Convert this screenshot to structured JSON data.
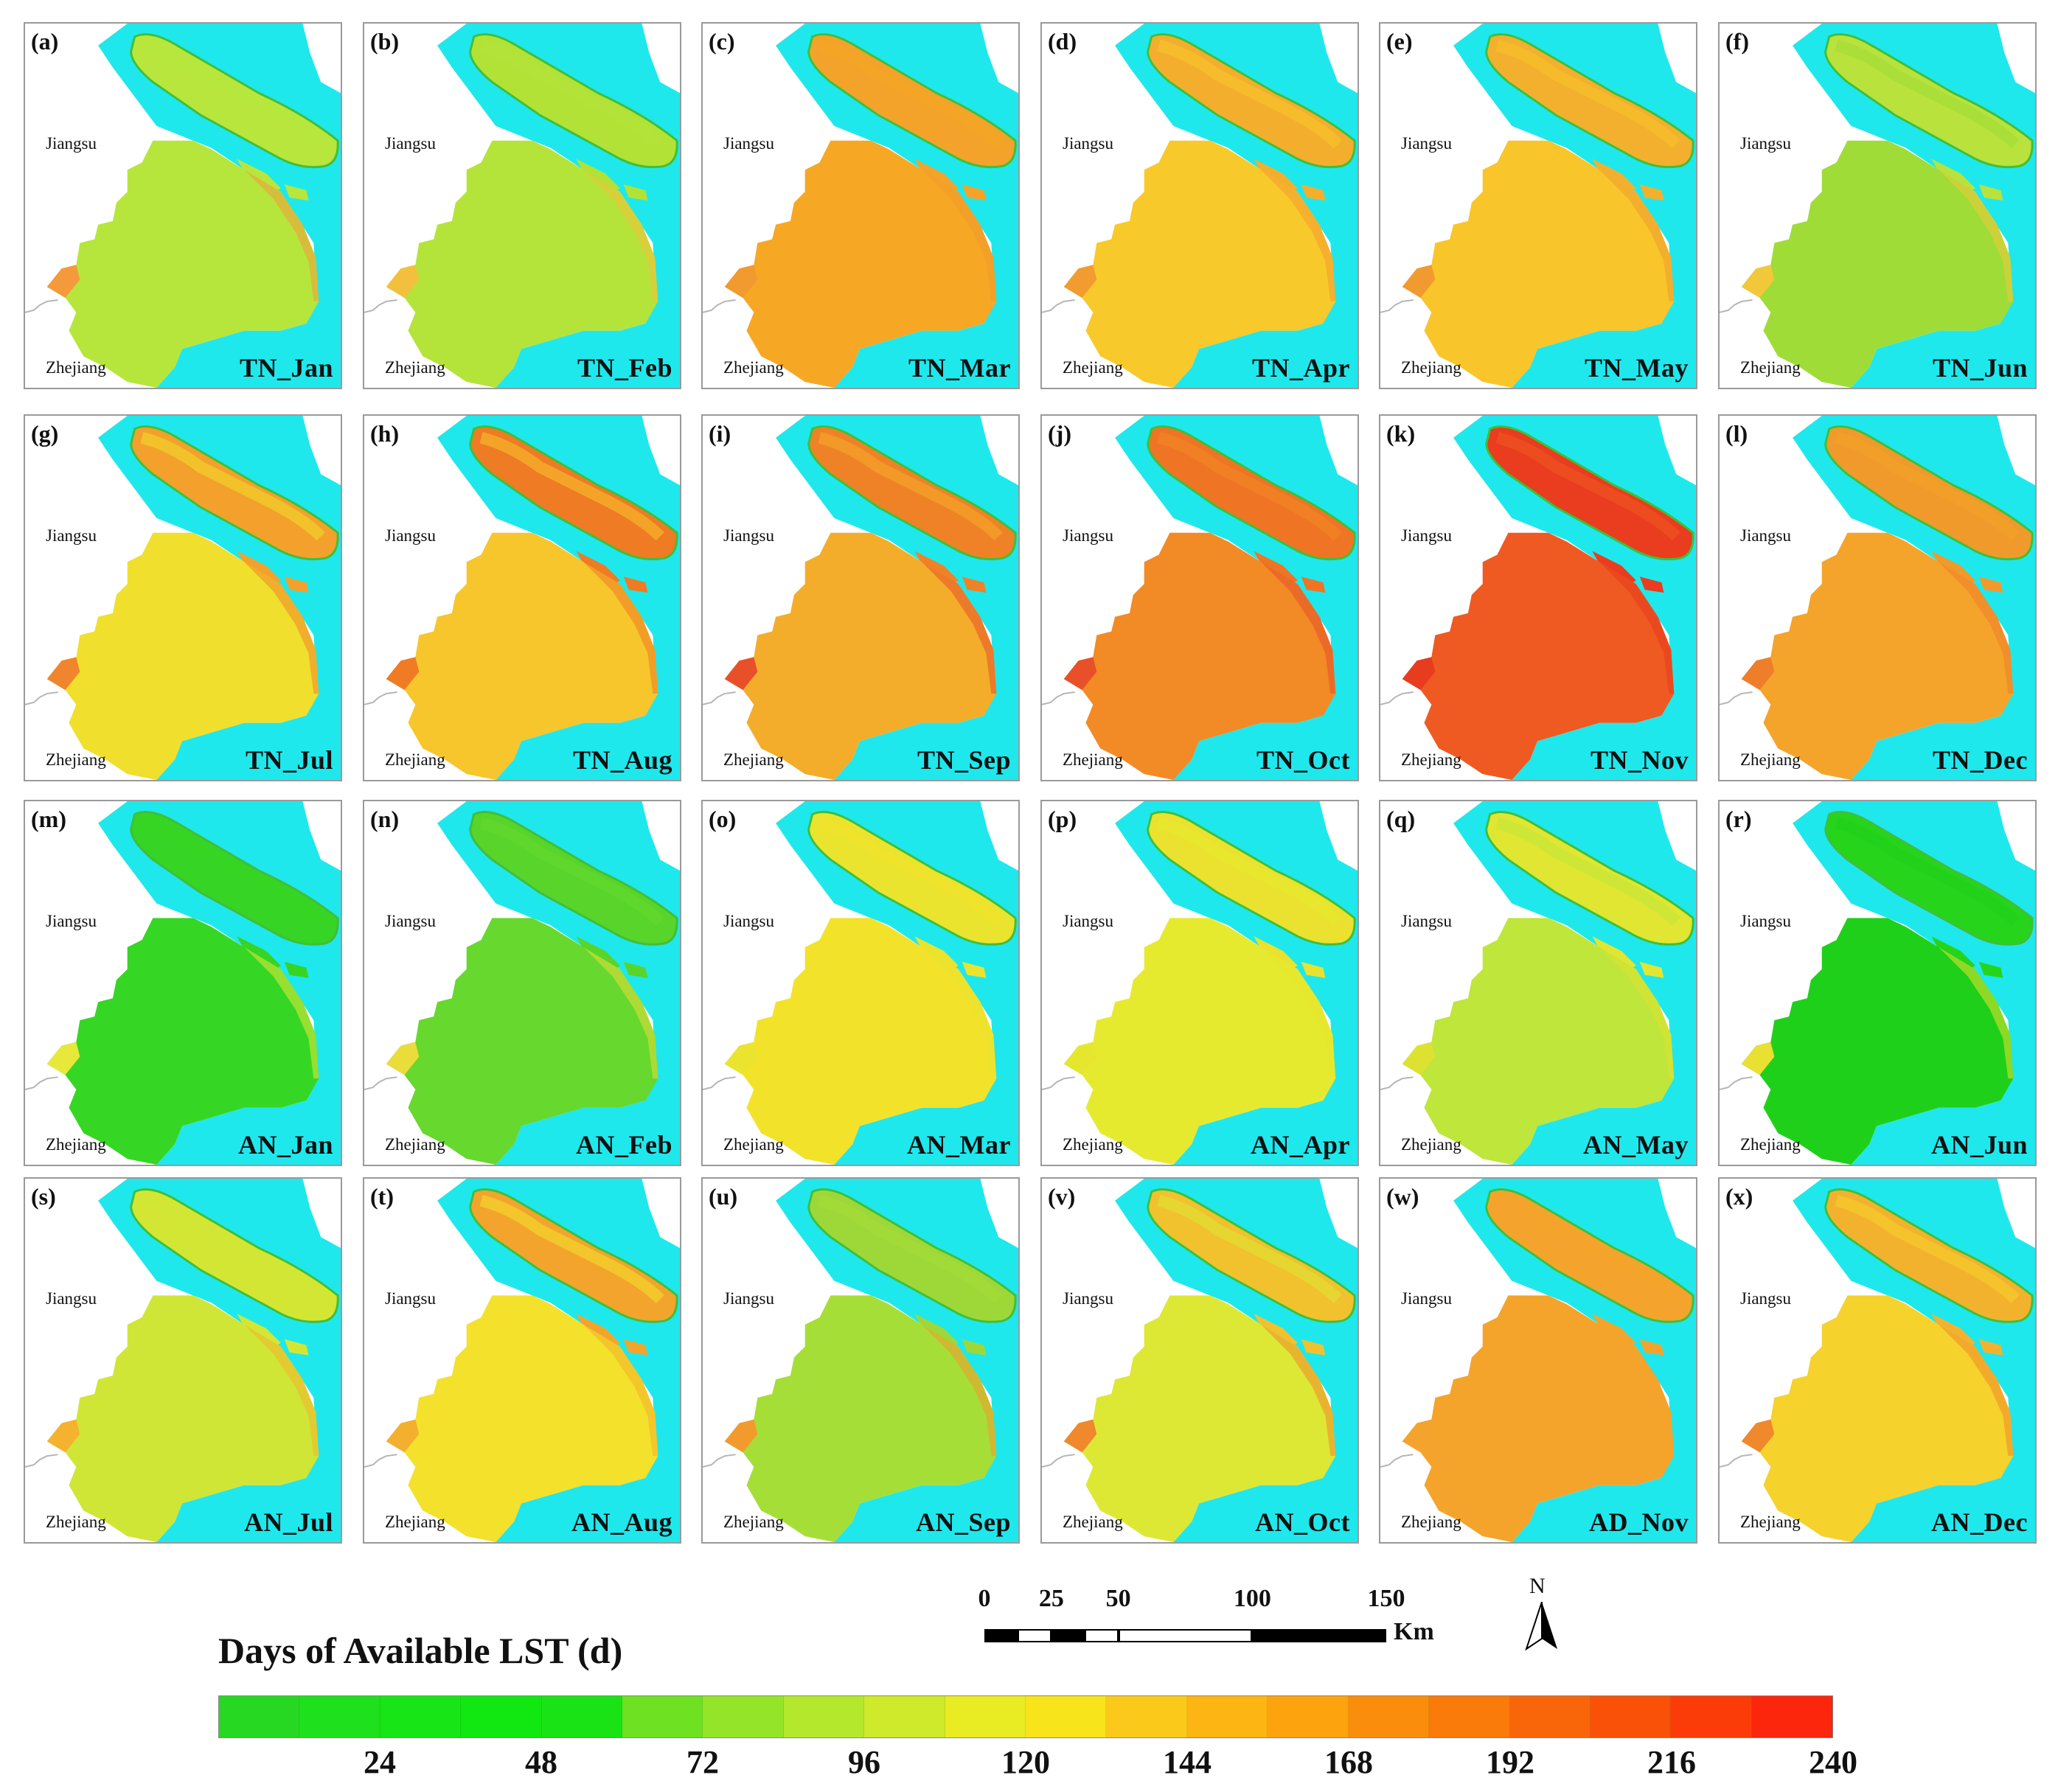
{
  "regions": {
    "north": "Jiangsu",
    "south": "Zhejiang"
  },
  "panels": [
    {
      "letter": "(a)",
      "label": "TN_Jan",
      "color": "#b6e63c",
      "island": "#b9e63c",
      "west": "#f49a3c"
    },
    {
      "letter": "(b)",
      "label": "TN_Feb",
      "color": "#b4e43a",
      "island": "#b2e236",
      "west": "#f2c03c"
    },
    {
      "letter": "(c)",
      "label": "TN_Mar",
      "color": "#f6a723",
      "island": "#f3a32a",
      "west": "#f19a30"
    },
    {
      "letter": "(d)",
      "label": "TN_Apr",
      "color": "#f8c92a",
      "island": "#f4ae2d",
      "west": "#f29b30"
    },
    {
      "letter": "(e)",
      "label": "TN_May",
      "color": "#f8c52a",
      "island": "#f3b02e",
      "west": "#f09a30"
    },
    {
      "letter": "(f)",
      "label": "TN_Jun",
      "color": "#9fdc38",
      "island": "#b9e23c",
      "west": "#f2c83a"
    },
    {
      "letter": "(g)",
      "label": "TN_Jul",
      "color": "#f0df2c",
      "island": "#f3a12c",
      "west": "#f0852e"
    },
    {
      "letter": "(h)",
      "label": "TN_Aug",
      "color": "#f6c62c",
      "island": "#ef7b24",
      "west": "#ef7b24"
    },
    {
      "letter": "(i)",
      "label": "TN_Sep",
      "color": "#f4ad2a",
      "island": "#ef8226",
      "west": "#e8502a"
    },
    {
      "letter": "(j)",
      "label": "TN_Oct",
      "color": "#f28a26",
      "island": "#ef7424",
      "west": "#e8502a"
    },
    {
      "letter": "(k)",
      "label": "TN_Nov",
      "color": "#ee5a22",
      "island": "#ea3c1e",
      "west": "#e83c1e"
    },
    {
      "letter": "(l)",
      "label": "TN_Dec",
      "color": "#f4a42a",
      "island": "#f09a2c",
      "west": "#ee7e2a"
    },
    {
      "letter": "(m)",
      "label": "AN_Jan",
      "color": "#36d624",
      "island": "#36d424",
      "west": "#e8e83a"
    },
    {
      "letter": "(n)",
      "label": "AN_Feb",
      "color": "#66d82e",
      "island": "#58d42a",
      "west": "#eadc3a"
    },
    {
      "letter": "(o)",
      "label": "AN_Mar",
      "color": "#f3e22a",
      "island": "#eae42e",
      "west": "#eae42e"
    },
    {
      "letter": "(p)",
      "label": "AN_Apr",
      "color": "#e6ea2e",
      "island": "#eae22e",
      "west": "#e6e62e"
    },
    {
      "letter": "(q)",
      "label": "AN_May",
      "color": "#bfe63a",
      "island": "#e0e632",
      "west": "#dde232"
    },
    {
      "letter": "(r)",
      "label": "AN_Jun",
      "color": "#1fd01a",
      "island": "#27d41c",
      "west": "#eae032"
    },
    {
      "letter": "(s)",
      "label": "AN_Jul",
      "color": "#cfe636",
      "island": "#d4e634",
      "west": "#f5b22e"
    },
    {
      "letter": "(t)",
      "label": "AN_Aug",
      "color": "#f3e12c",
      "island": "#f3a42c",
      "west": "#f3b02e"
    },
    {
      "letter": "(u)",
      "label": "AN_Sep",
      "color": "#a6de38",
      "island": "#9ed838",
      "west": "#f39a2e"
    },
    {
      "letter": "(v)",
      "label": "AN_Oct",
      "color": "#dde834",
      "island": "#f1c22e",
      "west": "#f0882c"
    },
    {
      "letter": "(w)",
      "label": "AD_Nov",
      "color": "#f4a42a",
      "island": "#f4a42c",
      "west": "#f4a42c"
    },
    {
      "letter": "(x)",
      "label": "AN_Dec",
      "color": "#f5d22c",
      "island": "#f3b22e",
      "west": "#f0882c"
    }
  ],
  "scale_bar": {
    "labels": [
      "0",
      "25",
      "50",
      "100",
      "150"
    ],
    "values": [
      0,
      25,
      50,
      100,
      150
    ],
    "unit": "Km"
  },
  "north_arrow": {
    "label": "N"
  },
  "legend": {
    "title": "Days of Available LST (d)",
    "min": 0,
    "max": 240,
    "ticks": [
      "24",
      "48",
      "72",
      "96",
      "120",
      "144",
      "168",
      "192",
      "216",
      "240"
    ],
    "tick_values": [
      24,
      48,
      72,
      96,
      120,
      144,
      168,
      192,
      216,
      240
    ],
    "colors": [
      "#27d822",
      "#1ee01c",
      "#17e516",
      "#11e711",
      "#19e315",
      "#6ee123",
      "#94e42a",
      "#b3e82c",
      "#cfe92b",
      "#e9ec22",
      "#f7e41b",
      "#fbc91a",
      "#fcb512",
      "#fda30d",
      "#fb8d0c",
      "#fa7a0a",
      "#f96609",
      "#f95208",
      "#fb3c09",
      "#fc260c"
    ]
  },
  "map_colors": {
    "water": "#1fe8ec",
    "boundary": "#b5b5b5"
  }
}
